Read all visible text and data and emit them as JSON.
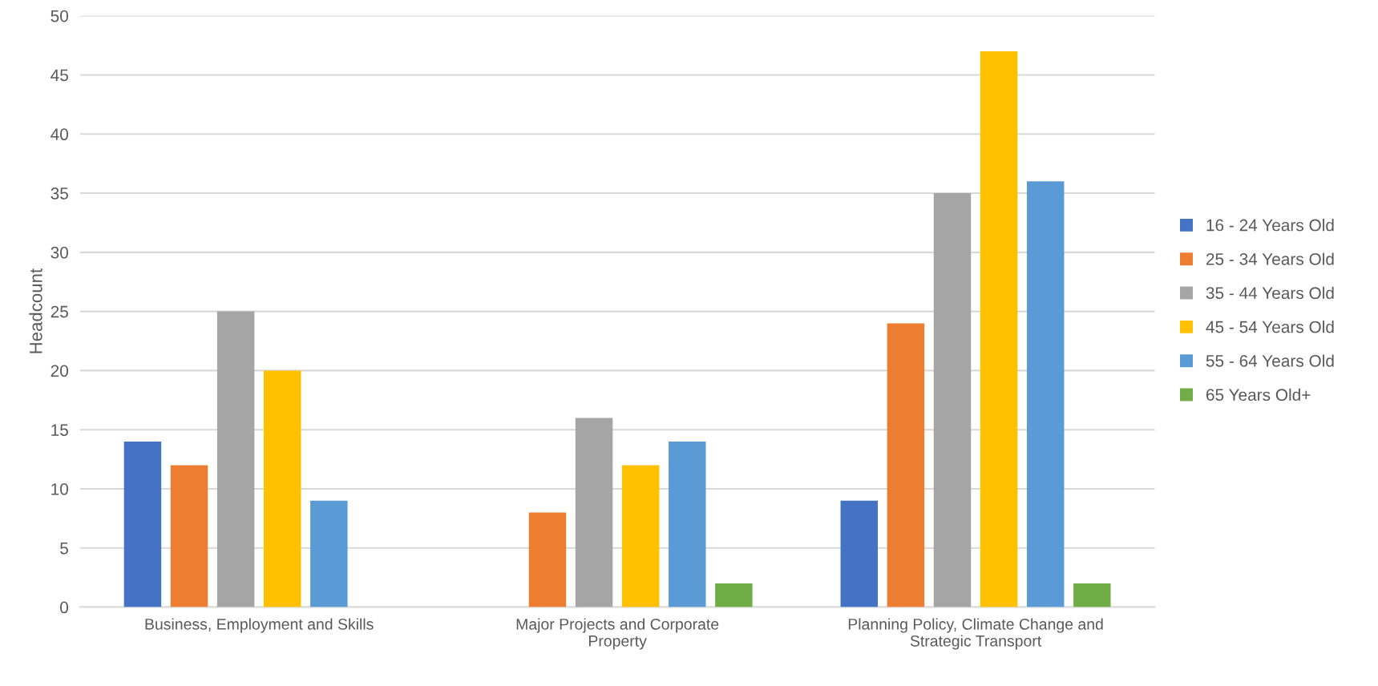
{
  "chart_data": {
    "type": "bar",
    "ylabel": "Headcount",
    "categories": [
      "Business, Employment and Skills",
      "Major Projects and Corporate Property",
      "Planning Policy, Climate Change and Strategic Transport"
    ],
    "series": [
      {
        "name": "16 - 24 Years Old",
        "color": "#4472c4",
        "values": [
          14,
          null,
          9
        ]
      },
      {
        "name": "25 - 34 Years Old",
        "color": "#ed7d31",
        "values": [
          12,
          8,
          24
        ]
      },
      {
        "name": "35 - 44 Years Old",
        "color": "#a5a5a5",
        "values": [
          25,
          16,
          35
        ]
      },
      {
        "name": "45 - 54 Years Old",
        "color": "#ffc000",
        "values": [
          20,
          12,
          47
        ]
      },
      {
        "name": "55 - 64 Years Old",
        "color": "#5b9bd5",
        "values": [
          9,
          14,
          36
        ]
      },
      {
        "name": "65 Years Old+",
        "color": "#70ad47",
        "values": [
          null,
          2,
          2
        ]
      }
    ],
    "ylim": [
      0,
      50
    ],
    "yticks": [
      0,
      5,
      10,
      15,
      20,
      25,
      30,
      35,
      40,
      45,
      50
    ],
    "grid": "y",
    "legend": "right"
  }
}
